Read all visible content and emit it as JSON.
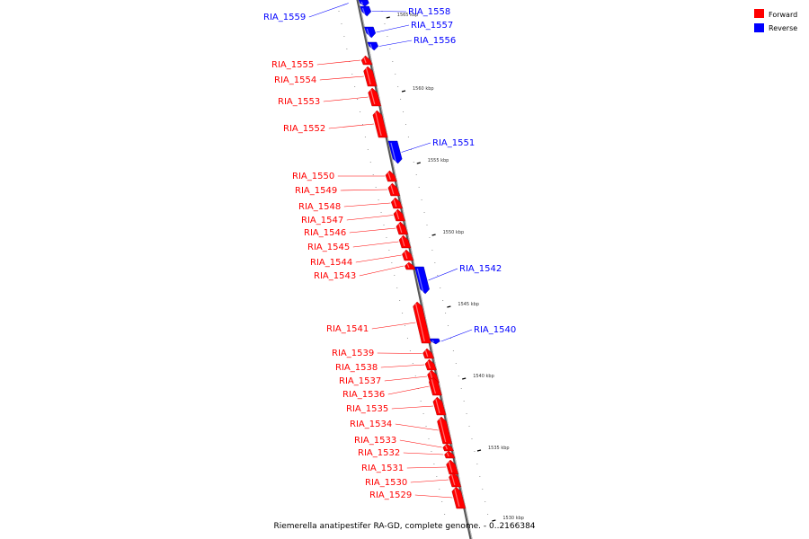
{
  "legend": {
    "items": [
      {
        "label": "Forward",
        "color": "#ff0000"
      },
      {
        "label": "Reverse",
        "color": "#0000ff"
      }
    ]
  },
  "caption": "Riemerella anatipestifer RA-GD, complete genome. - 0..2166384",
  "colors": {
    "forward": "#ff0000",
    "reverse": "#0000ff",
    "axis": "#888888",
    "tick": "#000000"
  },
  "ticks": [
    "1565 kbp",
    "1560 kbp",
    "1555 kbp",
    "1550 kbp",
    "1545 kbp",
    "1540 kbp",
    "1535 kbp",
    "1530 kbp"
  ],
  "genes": [
    {
      "name": "RIA_1559",
      "strand": "reverse"
    },
    {
      "name": "RIA_1558",
      "strand": "reverse"
    },
    {
      "name": "RIA_1557",
      "strand": "reverse"
    },
    {
      "name": "RIA_1556",
      "strand": "reverse"
    },
    {
      "name": "RIA_1555",
      "strand": "forward"
    },
    {
      "name": "RIA_1554",
      "strand": "forward"
    },
    {
      "name": "RIA_1553",
      "strand": "forward"
    },
    {
      "name": "RIA_1552",
      "strand": "forward"
    },
    {
      "name": "RIA_1551",
      "strand": "reverse"
    },
    {
      "name": "RIA_1550",
      "strand": "forward"
    },
    {
      "name": "RIA_1549",
      "strand": "forward"
    },
    {
      "name": "RIA_1548",
      "strand": "forward"
    },
    {
      "name": "RIA_1547",
      "strand": "forward"
    },
    {
      "name": "RIA_1546",
      "strand": "forward"
    },
    {
      "name": "RIA_1545",
      "strand": "forward"
    },
    {
      "name": "RIA_1544",
      "strand": "forward"
    },
    {
      "name": "RIA_1543",
      "strand": "forward"
    },
    {
      "name": "RIA_1542",
      "strand": "reverse"
    },
    {
      "name": "RIA_1541",
      "strand": "forward"
    },
    {
      "name": "RIA_1540",
      "strand": "reverse"
    },
    {
      "name": "RIA_1539",
      "strand": "forward"
    },
    {
      "name": "RIA_1538",
      "strand": "forward"
    },
    {
      "name": "RIA_1537",
      "strand": "forward"
    },
    {
      "name": "RIA_1536",
      "strand": "forward"
    },
    {
      "name": "RIA_1535",
      "strand": "forward"
    },
    {
      "name": "RIA_1534",
      "strand": "forward"
    },
    {
      "name": "RIA_1533",
      "strand": "forward"
    },
    {
      "name": "RIA_1532",
      "strand": "forward"
    },
    {
      "name": "RIA_1531",
      "strand": "forward"
    },
    {
      "name": "RIA_1530",
      "strand": "forward"
    },
    {
      "name": "RIA_1529",
      "strand": "forward"
    }
  ]
}
